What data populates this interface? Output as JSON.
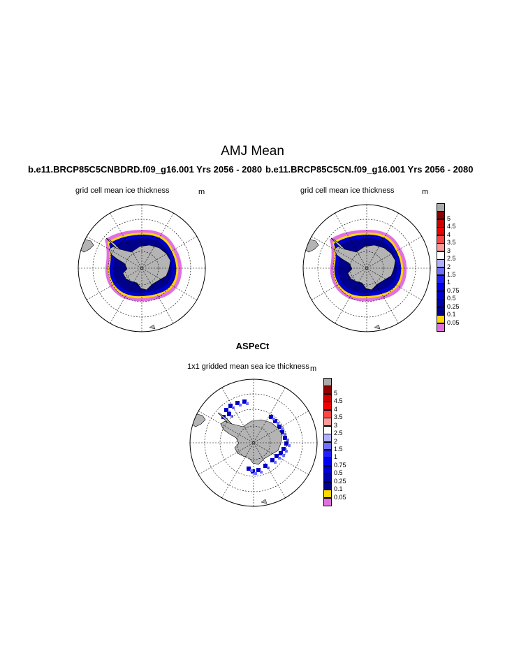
{
  "figure": {
    "title": "AMJ Mean"
  },
  "panels": [
    {
      "id": "left",
      "title": "b.e11.BRCP85C5CNBDRD.f09_g16.001  Yrs 2056 - 2080",
      "variable_label": "grid cell mean ice thickness",
      "units": "m"
    },
    {
      "id": "right",
      "title": "b.e11.BRCP85C5CN.f09_g16.001  Yrs 2056 - 2080",
      "variable_label": "grid cell mean ice thickness",
      "units": "m"
    },
    {
      "id": "bottom",
      "title": "ASPeCt",
      "variable_label": "1x1 gridded mean sea ice thickness",
      "units": "m"
    }
  ],
  "colorbar": {
    "levels": [
      "0.05",
      "0.1",
      "0.25",
      "0.5",
      "0.75",
      "1",
      "1.5",
      "2",
      "2.5",
      "3",
      "3.5",
      "4",
      "4.5",
      "5"
    ],
    "colors": [
      "#e070e0",
      "#ffd700",
      "#00008b",
      "#0000a8",
      "#0000cd",
      "#0000ee",
      "#2020ff",
      "#7070ff",
      "#b0b0ff",
      "#ffffff",
      "#ff9999",
      "#ff4444",
      "#ee0000",
      "#cc0000",
      "#8b0000",
      "#aaaaaa"
    ]
  },
  "map_colors": {
    "land": "#b4b4b4",
    "ocean": "#ffffff"
  }
}
